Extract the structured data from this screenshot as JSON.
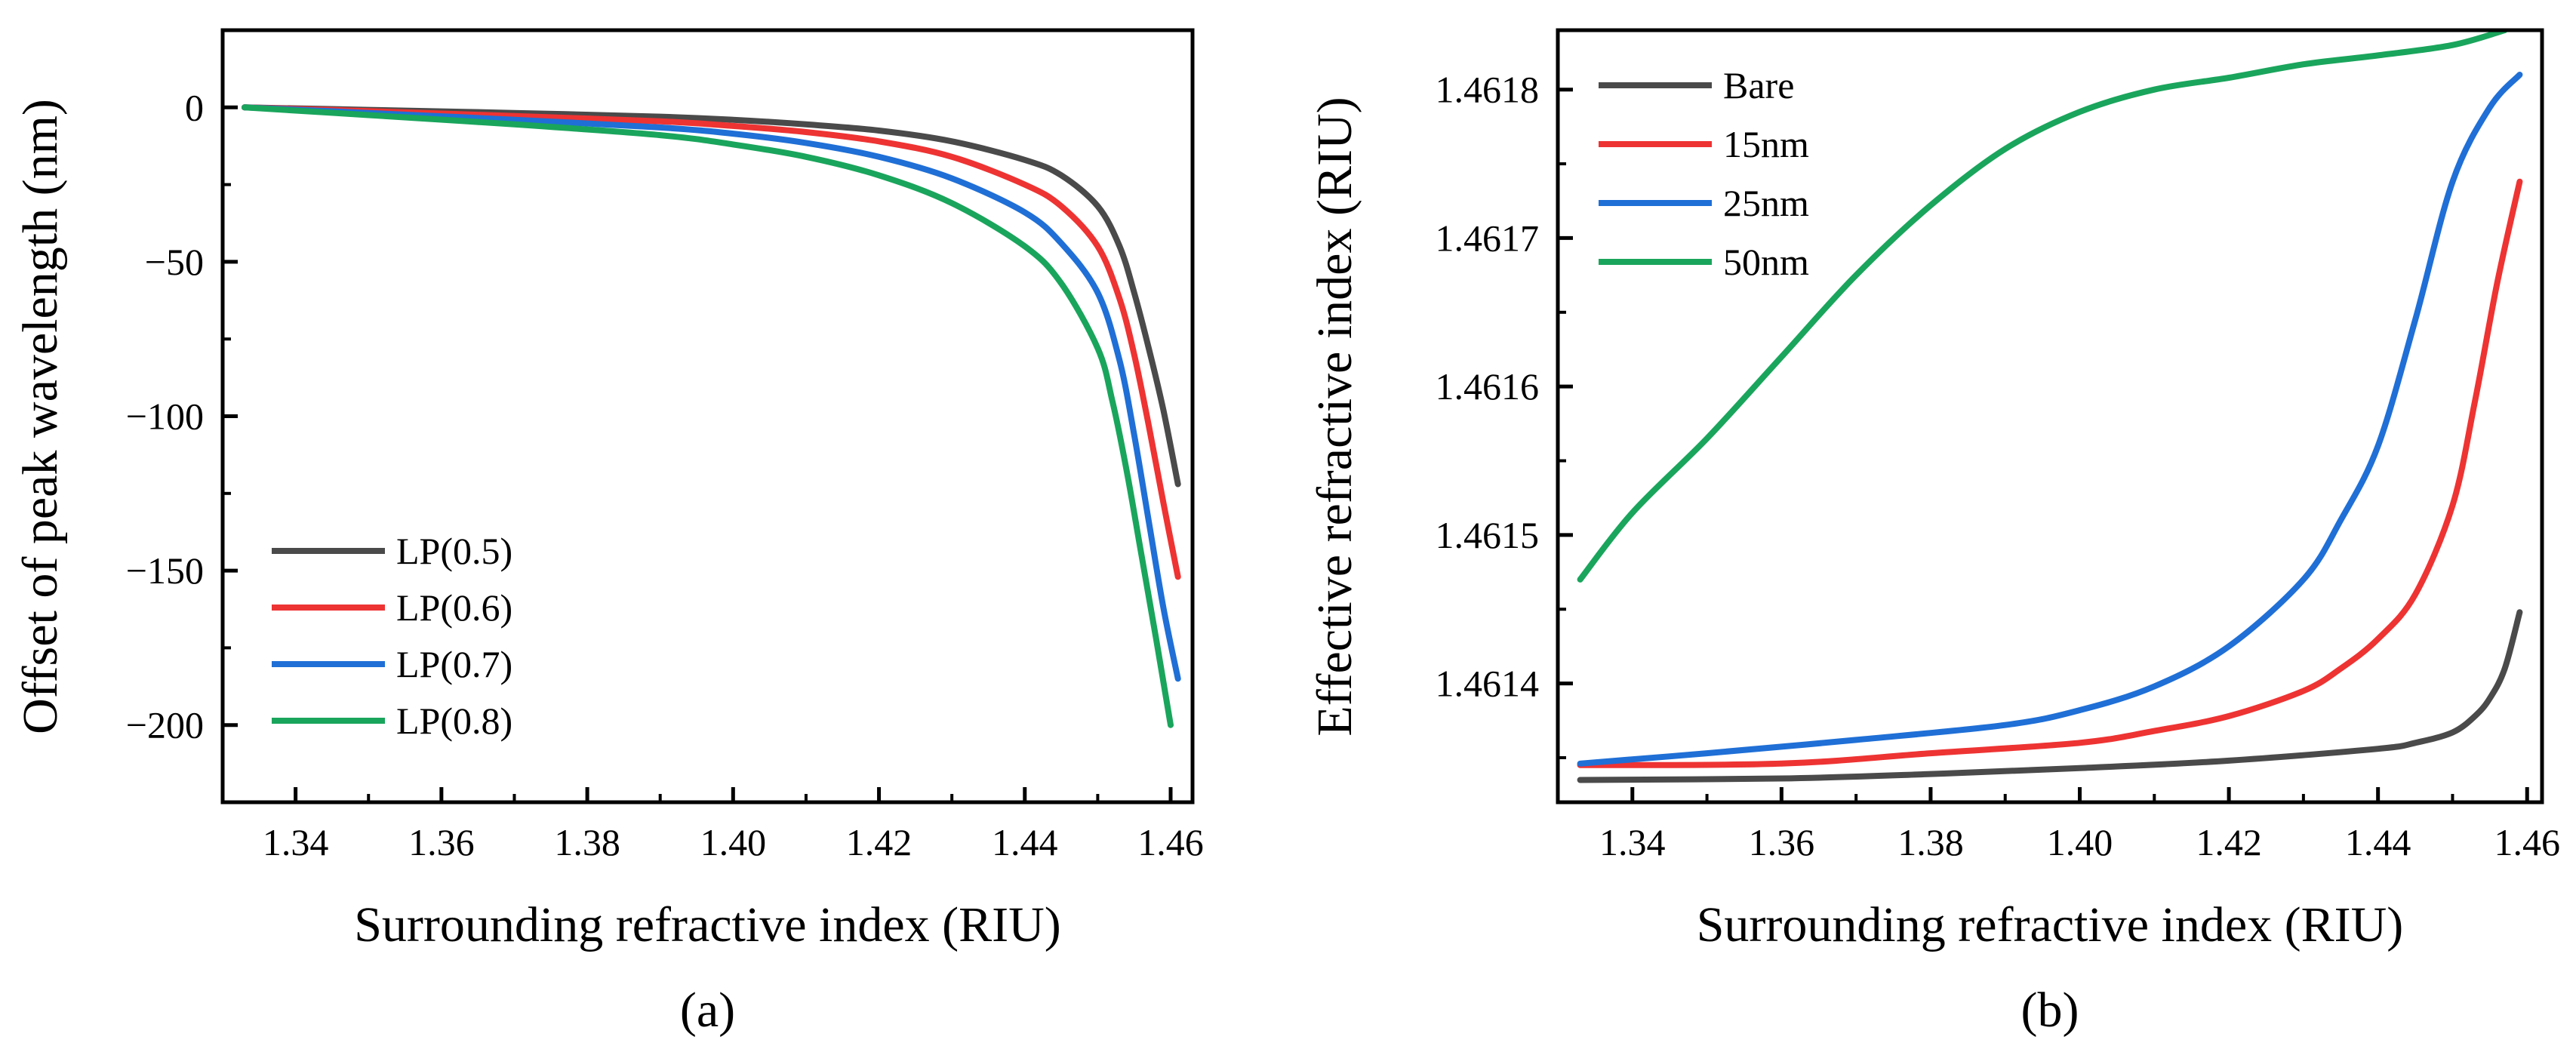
{
  "chart_data": [
    {
      "type": "line",
      "panel_label": "(a)",
      "xlabel": "Surrounding refractive index (RIU)",
      "ylabel": "Offset of peak wavelength (nm)",
      "xlim": [
        1.33,
        1.463
      ],
      "ylim": [
        -225,
        25
      ],
      "xticks": [
        1.34,
        1.36,
        1.38,
        1.4,
        1.42,
        1.44,
        1.46
      ],
      "xtick_labels": [
        "1.34",
        "1.36",
        "1.38",
        "1.40",
        "1.42",
        "1.44",
        "1.46"
      ],
      "yticks": [
        0,
        -50,
        -100,
        -150,
        -200
      ],
      "ytick_labels": [
        "0",
        "−50",
        "−100",
        "−150",
        "−200"
      ],
      "grid": false,
      "legend_position": "bottom-left",
      "series": [
        {
          "name": "LP(0.5)",
          "color": "#4a4a4a",
          "x": [
            1.333,
            1.35,
            1.37,
            1.39,
            1.4,
            1.41,
            1.42,
            1.43,
            1.44,
            1.445,
            1.45,
            1.453,
            1.455,
            1.457,
            1.459,
            1.461
          ],
          "y": [
            0,
            -0.8,
            -1.8,
            -3,
            -4,
            -5.5,
            -7.5,
            -11,
            -17,
            -22,
            -32,
            -45,
            -60,
            -78,
            -98,
            -122
          ]
        },
        {
          "name": "LP(0.6)",
          "color": "#ee3333",
          "x": [
            1.333,
            1.35,
            1.37,
            1.39,
            1.4,
            1.41,
            1.42,
            1.43,
            1.44,
            1.445,
            1.45,
            1.453,
            1.455,
            1.457,
            1.459,
            1.461
          ],
          "y": [
            0,
            -1.2,
            -2.8,
            -4.5,
            -6,
            -8,
            -11,
            -16,
            -25,
            -32,
            -45,
            -62,
            -80,
            -103,
            -128,
            -152
          ]
        },
        {
          "name": "LP(0.7)",
          "color": "#1f6fd6",
          "x": [
            1.333,
            1.35,
            1.37,
            1.39,
            1.4,
            1.41,
            1.42,
            1.43,
            1.44,
            1.445,
            1.45,
            1.453,
            1.455,
            1.457,
            1.459,
            1.461
          ],
          "y": [
            0,
            -1.8,
            -4,
            -6.5,
            -8.5,
            -11.5,
            -16,
            -23,
            -34,
            -44,
            -60,
            -82,
            -106,
            -134,
            -162,
            -185
          ]
        },
        {
          "name": "LP(0.8)",
          "color": "#1aa55c",
          "x": [
            1.333,
            1.35,
            1.37,
            1.39,
            1.4,
            1.41,
            1.42,
            1.43,
            1.44,
            1.445,
            1.45,
            1.452,
            1.454,
            1.456,
            1.458,
            1.46
          ],
          "y": [
            0,
            -2.5,
            -5.5,
            -9,
            -12,
            -16,
            -22,
            -31,
            -45,
            -57,
            -78,
            -95,
            -118,
            -145,
            -172,
            -200
          ]
        }
      ]
    },
    {
      "type": "line",
      "panel_label": "(b)",
      "xlabel": "Surrounding refractive index (RIU)",
      "ylabel": "Effective refractive index (RIU)",
      "xlim": [
        1.33,
        1.462
      ],
      "ylim": [
        1.46132,
        1.46184
      ],
      "xticks": [
        1.34,
        1.36,
        1.38,
        1.4,
        1.42,
        1.44,
        1.46
      ],
      "xtick_labels": [
        "1.34",
        "1.36",
        "1.38",
        "1.40",
        "1.42",
        "1.44",
        "1.46"
      ],
      "yticks": [
        1.4614,
        1.4615,
        1.4616,
        1.4617,
        1.4618
      ],
      "ytick_labels": [
        "1.4614",
        "1.4615",
        "1.4616",
        "1.4617",
        "1.4618"
      ],
      "grid": false,
      "legend_position": "top-left",
      "series": [
        {
          "name": "Bare",
          "color": "#4a4a4a",
          "x": [
            1.333,
            1.36,
            1.38,
            1.4,
            1.42,
            1.44,
            1.445,
            1.45,
            1.453,
            1.455,
            1.457,
            1.459
          ],
          "y": [
            1.461335,
            1.461336,
            1.461339,
            1.461343,
            1.461348,
            1.461356,
            1.46136,
            1.461367,
            1.461378,
            1.46139,
            1.46141,
            1.461448
          ]
        },
        {
          "name": "15nm",
          "color": "#ee3333",
          "x": [
            1.333,
            1.36,
            1.38,
            1.4,
            1.41,
            1.42,
            1.43,
            1.435,
            1.44,
            1.445,
            1.45,
            1.453,
            1.456,
            1.459
          ],
          "y": [
            1.461345,
            1.461346,
            1.461353,
            1.46136,
            1.461368,
            1.461378,
            1.461395,
            1.46141,
            1.46143,
            1.46146,
            1.46152,
            1.46159,
            1.46167,
            1.461738
          ]
        },
        {
          "name": "25nm",
          "color": "#1f6fd6",
          "x": [
            1.333,
            1.35,
            1.37,
            1.39,
            1.4,
            1.41,
            1.42,
            1.43,
            1.435,
            1.44,
            1.445,
            1.45,
            1.455,
            1.459
          ],
          "y": [
            1.461346,
            1.461353,
            1.461362,
            1.461372,
            1.461382,
            1.461398,
            1.461425,
            1.46147,
            1.46151,
            1.46156,
            1.461645,
            1.461738,
            1.461788,
            1.46181
          ]
        },
        {
          "name": "50nm",
          "color": "#1aa55c",
          "x": [
            1.333,
            1.34,
            1.35,
            1.36,
            1.37,
            1.38,
            1.39,
            1.4,
            1.41,
            1.42,
            1.43,
            1.44,
            1.45,
            1.457
          ],
          "y": [
            1.46147,
            1.461515,
            1.461565,
            1.46162,
            1.461675,
            1.461722,
            1.46176,
            1.461785,
            1.4618,
            1.461808,
            1.461817,
            1.461823,
            1.46183,
            1.46184
          ]
        }
      ]
    }
  ]
}
